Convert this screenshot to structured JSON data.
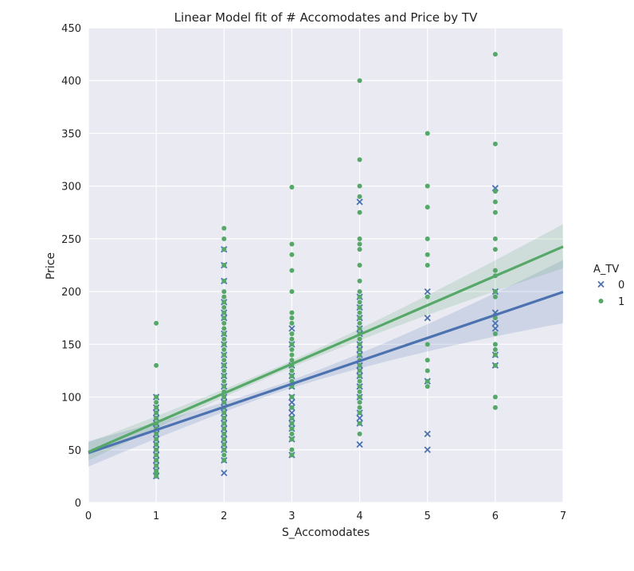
{
  "chart_data": {
    "type": "scatter",
    "title": "Linear Model fit of # Accomodates and Price by TV",
    "xlabel": "S_Accomodates",
    "ylabel": "Price",
    "xlim": [
      0,
      7
    ],
    "ylim": [
      0,
      450
    ],
    "xticks": [
      0,
      1,
      2,
      3,
      4,
      5,
      6,
      7
    ],
    "yticks": [
      0,
      50,
      100,
      150,
      200,
      250,
      300,
      350,
      400,
      450
    ],
    "grid": true,
    "legend": {
      "title": "A_TV",
      "placement": "right"
    },
    "colors": {
      "tv0": "#4c72b0",
      "tv1": "#55a868",
      "background": "#eaeaf2",
      "grid": "#ffffff"
    },
    "series": [
      {
        "name": "0",
        "marker": "x",
        "fit": {
          "intercept": 47,
          "slope": 21.8,
          "ci_low_at": [
            [
              0,
              34
            ],
            [
              7,
              170
            ]
          ],
          "ci_high_at": [
            [
              0,
              58
            ],
            [
              7,
              230
            ]
          ]
        },
        "points": [
          [
            1,
            25
          ],
          [
            1,
            30
          ],
          [
            1,
            35
          ],
          [
            1,
            40
          ],
          [
            1,
            45
          ],
          [
            1,
            50
          ],
          [
            1,
            55
          ],
          [
            1,
            60
          ],
          [
            1,
            65
          ],
          [
            1,
            70
          ],
          [
            1,
            75
          ],
          [
            1,
            80
          ],
          [
            1,
            85
          ],
          [
            1,
            90
          ],
          [
            1,
            100
          ],
          [
            2,
            28
          ],
          [
            2,
            40
          ],
          [
            2,
            50
          ],
          [
            2,
            55
          ],
          [
            2,
            60
          ],
          [
            2,
            65
          ],
          [
            2,
            70
          ],
          [
            2,
            75
          ],
          [
            2,
            80
          ],
          [
            2,
            85
          ],
          [
            2,
            90
          ],
          [
            2,
            95
          ],
          [
            2,
            100
          ],
          [
            2,
            110
          ],
          [
            2,
            120
          ],
          [
            2,
            130
          ],
          [
            2,
            140
          ],
          [
            2,
            150
          ],
          [
            2,
            160
          ],
          [
            2,
            175
          ],
          [
            2,
            180
          ],
          [
            2,
            190
          ],
          [
            2,
            210
          ],
          [
            2,
            225
          ],
          [
            2,
            240
          ],
          [
            3,
            45
          ],
          [
            3,
            60
          ],
          [
            3,
            70
          ],
          [
            3,
            75
          ],
          [
            3,
            80
          ],
          [
            3,
            85
          ],
          [
            3,
            90
          ],
          [
            3,
            95
          ],
          [
            3,
            100
          ],
          [
            3,
            110
          ],
          [
            3,
            120
          ],
          [
            3,
            130
          ],
          [
            3,
            150
          ],
          [
            3,
            165
          ],
          [
            4,
            55
          ],
          [
            4,
            75
          ],
          [
            4,
            80
          ],
          [
            4,
            85
          ],
          [
            4,
            100
          ],
          [
            4,
            110
          ],
          [
            4,
            120
          ],
          [
            4,
            125
          ],
          [
            4,
            130
          ],
          [
            4,
            140
          ],
          [
            4,
            145
          ],
          [
            4,
            150
          ],
          [
            4,
            160
          ],
          [
            4,
            165
          ],
          [
            4,
            175
          ],
          [
            4,
            185
          ],
          [
            4,
            195
          ],
          [
            4,
            285
          ],
          [
            5,
            50
          ],
          [
            5,
            65
          ],
          [
            5,
            115
          ],
          [
            5,
            175
          ],
          [
            5,
            200
          ],
          [
            6,
            130
          ],
          [
            6,
            140
          ],
          [
            6,
            165
          ],
          [
            6,
            170
          ],
          [
            6,
            180
          ],
          [
            6,
            200
          ],
          [
            6,
            298
          ]
        ]
      },
      {
        "name": "1",
        "marker": "o",
        "fit": {
          "intercept": 48,
          "slope": 27.8,
          "ci_low_at": [
            [
              0,
              40
            ],
            [
              7,
              222
            ]
          ],
          "ci_high_at": [
            [
              0,
              57
            ],
            [
              7,
              264
            ]
          ]
        },
        "points": [
          [
            1,
            25
          ],
          [
            1,
            28
          ],
          [
            1,
            30
          ],
          [
            1,
            35
          ],
          [
            1,
            40
          ],
          [
            1,
            45
          ],
          [
            1,
            50
          ],
          [
            1,
            55
          ],
          [
            1,
            60
          ],
          [
            1,
            65
          ],
          [
            1,
            70
          ],
          [
            1,
            75
          ],
          [
            1,
            80
          ],
          [
            1,
            85
          ],
          [
            1,
            90
          ],
          [
            1,
            95
          ],
          [
            1,
            100
          ],
          [
            1,
            130
          ],
          [
            1,
            170
          ],
          [
            2,
            40
          ],
          [
            2,
            45
          ],
          [
            2,
            50
          ],
          [
            2,
            55
          ],
          [
            2,
            60
          ],
          [
            2,
            65
          ],
          [
            2,
            70
          ],
          [
            2,
            75
          ],
          [
            2,
            80
          ],
          [
            2,
            85
          ],
          [
            2,
            90
          ],
          [
            2,
            95
          ],
          [
            2,
            100
          ],
          [
            2,
            105
          ],
          [
            2,
            110
          ],
          [
            2,
            115
          ],
          [
            2,
            120
          ],
          [
            2,
            125
          ],
          [
            2,
            130
          ],
          [
            2,
            135
          ],
          [
            2,
            140
          ],
          [
            2,
            145
          ],
          [
            2,
            150
          ],
          [
            2,
            155
          ],
          [
            2,
            160
          ],
          [
            2,
            165
          ],
          [
            2,
            170
          ],
          [
            2,
            175
          ],
          [
            2,
            180
          ],
          [
            2,
            185
          ],
          [
            2,
            190
          ],
          [
            2,
            195
          ],
          [
            2,
            200
          ],
          [
            2,
            210
          ],
          [
            2,
            225
          ],
          [
            2,
            240
          ],
          [
            2,
            250
          ],
          [
            2,
            260
          ],
          [
            3,
            45
          ],
          [
            3,
            50
          ],
          [
            3,
            60
          ],
          [
            3,
            65
          ],
          [
            3,
            70
          ],
          [
            3,
            75
          ],
          [
            3,
            80
          ],
          [
            3,
            90
          ],
          [
            3,
            100
          ],
          [
            3,
            110
          ],
          [
            3,
            115
          ],
          [
            3,
            120
          ],
          [
            3,
            125
          ],
          [
            3,
            130
          ],
          [
            3,
            135
          ],
          [
            3,
            140
          ],
          [
            3,
            145
          ],
          [
            3,
            150
          ],
          [
            3,
            155
          ],
          [
            3,
            160
          ],
          [
            3,
            170
          ],
          [
            3,
            175
          ],
          [
            3,
            180
          ],
          [
            3,
            200
          ],
          [
            3,
            220
          ],
          [
            3,
            235
          ],
          [
            3,
            245
          ],
          [
            3,
            299
          ],
          [
            4,
            65
          ],
          [
            4,
            75
          ],
          [
            4,
            85
          ],
          [
            4,
            90
          ],
          [
            4,
            95
          ],
          [
            4,
            100
          ],
          [
            4,
            105
          ],
          [
            4,
            110
          ],
          [
            4,
            115
          ],
          [
            4,
            120
          ],
          [
            4,
            125
          ],
          [
            4,
            130
          ],
          [
            4,
            135
          ],
          [
            4,
            140
          ],
          [
            4,
            145
          ],
          [
            4,
            150
          ],
          [
            4,
            155
          ],
          [
            4,
            160
          ],
          [
            4,
            165
          ],
          [
            4,
            170
          ],
          [
            4,
            175
          ],
          [
            4,
            180
          ],
          [
            4,
            185
          ],
          [
            4,
            190
          ],
          [
            4,
            195
          ],
          [
            4,
            200
          ],
          [
            4,
            210
          ],
          [
            4,
            225
          ],
          [
            4,
            240
          ],
          [
            4,
            245
          ],
          [
            4,
            250
          ],
          [
            4,
            275
          ],
          [
            4,
            290
          ],
          [
            4,
            300
          ],
          [
            4,
            325
          ],
          [
            4,
            400
          ],
          [
            5,
            110
          ],
          [
            5,
            115
          ],
          [
            5,
            125
          ],
          [
            5,
            135
          ],
          [
            5,
            150
          ],
          [
            5,
            195
          ],
          [
            5,
            225
          ],
          [
            5,
            235
          ],
          [
            5,
            250
          ],
          [
            5,
            280
          ],
          [
            5,
            300
          ],
          [
            5,
            350
          ],
          [
            6,
            90
          ],
          [
            6,
            100
          ],
          [
            6,
            130
          ],
          [
            6,
            140
          ],
          [
            6,
            145
          ],
          [
            6,
            150
          ],
          [
            6,
            160
          ],
          [
            6,
            175
          ],
          [
            6,
            195
          ],
          [
            6,
            200
          ],
          [
            6,
            215
          ],
          [
            6,
            220
          ],
          [
            6,
            240
          ],
          [
            6,
            250
          ],
          [
            6,
            275
          ],
          [
            6,
            285
          ],
          [
            6,
            295
          ],
          [
            6,
            340
          ],
          [
            6,
            425
          ]
        ]
      }
    ]
  }
}
